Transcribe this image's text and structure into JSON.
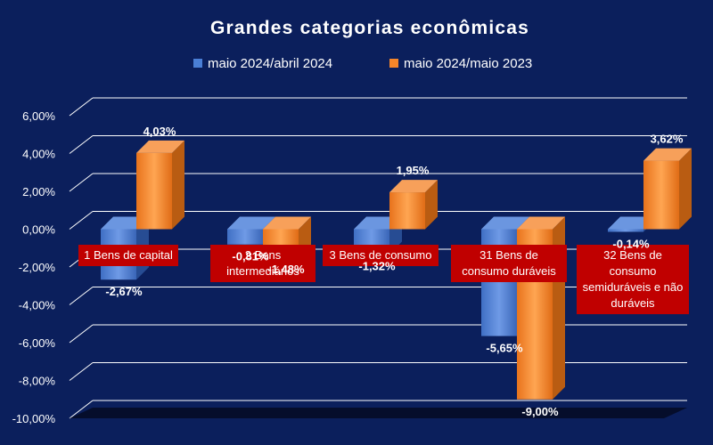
{
  "chart_data": {
    "type": "bar",
    "title": "Grandes categorias econômicas",
    "categories": [
      "1 Bens de capital",
      "2 Bens intermediários",
      "3 Bens de consumo",
      "31 Bens de consumo duráveis",
      "32 Bens de consumo semiduráveis e não duráveis"
    ],
    "series": [
      {
        "name": "maio 2024/abril 2024",
        "values": [
          -2.67,
          -0.81,
          -1.32,
          -5.65,
          -0.14
        ],
        "labels": [
          "-2,67%",
          "-0,81%",
          "-1,32%",
          "-5,65%",
          "-0,14%"
        ]
      },
      {
        "name": "maio 2024/maio 2023",
        "values": [
          4.03,
          -1.48,
          1.95,
          -9.0,
          3.62
        ],
        "labels": [
          "4,03%",
          "-1,48%",
          "1,95%",
          "-9,00%",
          "3,62%"
        ]
      }
    ],
    "yticks": [
      "6,00%",
      "4,00%",
      "2,00%",
      "0,00%",
      "-2,00%",
      "-4,00%",
      "-6,00%",
      "-8,00%",
      "-10,00%"
    ],
    "ytick_values": [
      6,
      4,
      2,
      0,
      -2,
      -4,
      -6,
      -8,
      -10
    ],
    "ylim": [
      -10,
      6
    ],
    "legend_position": "top",
    "grid": true,
    "colors": {
      "background": "#0b1f5c",
      "series1": "#4a7fd6",
      "series2": "#f5862a",
      "category_label_bg": "#c00000",
      "text": "#ffffff",
      "gridline": "#ffffff"
    }
  }
}
